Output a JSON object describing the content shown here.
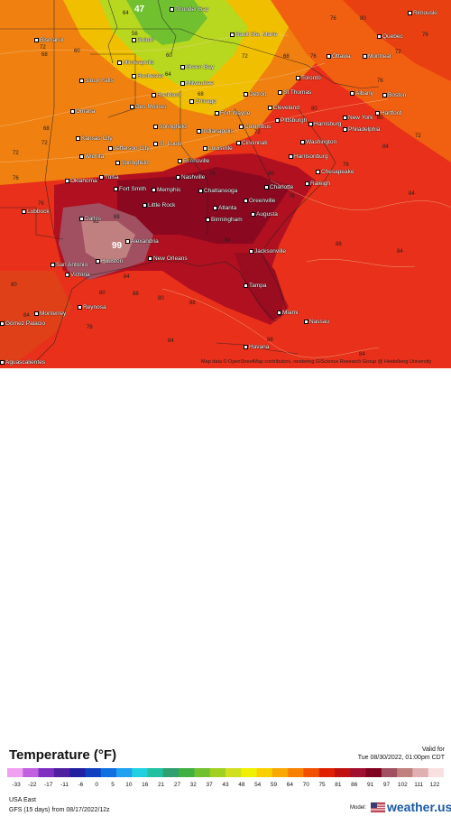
{
  "map": {
    "cities": [
      {
        "name": "Thunder Bay",
        "pos": [
          188,
          8
        ]
      },
      {
        "name": "Sault Ste. Marie",
        "pos": [
          255,
          36
        ]
      },
      {
        "name": "Quebec",
        "pos": [
          418,
          38
        ]
      },
      {
        "name": "Bismarck",
        "pos": [
          38,
          42
        ]
      },
      {
        "name": "Duluth",
        "pos": [
          146,
          42
        ]
      },
      {
        "name": "Rimouski",
        "pos": [
          452,
          12
        ]
      },
      {
        "name": "Ottawa",
        "pos": [
          362,
          60
        ]
      },
      {
        "name": "Montreal",
        "pos": [
          402,
          60
        ]
      },
      {
        "name": "Minneapolis",
        "pos": [
          130,
          67
        ]
      },
      {
        "name": "Green Bay",
        "pos": [
          200,
          72
        ]
      },
      {
        "name": "Toronto",
        "pos": [
          328,
          84
        ]
      },
      {
        "name": "Sioux Falls",
        "pos": [
          88,
          87
        ]
      },
      {
        "name": "Rochester",
        "pos": [
          146,
          82
        ]
      },
      {
        "name": "Milwaukee",
        "pos": [
          200,
          90
        ]
      },
      {
        "name": "Albany",
        "pos": [
          388,
          101
        ]
      },
      {
        "name": "Boston",
        "pos": [
          424,
          103
        ]
      },
      {
        "name": "Rockford",
        "pos": [
          168,
          103
        ]
      },
      {
        "name": "Chicago",
        "pos": [
          210,
          110
        ]
      },
      {
        "name": "Detroit",
        "pos": [
          270,
          102
        ]
      },
      {
        "name": "St Thomas",
        "pos": [
          308,
          100
        ]
      },
      {
        "name": "Des Moines",
        "pos": [
          144,
          116
        ]
      },
      {
        "name": "Omaha",
        "pos": [
          78,
          121
        ]
      },
      {
        "name": "Cleveland",
        "pos": [
          297,
          117
        ]
      },
      {
        "name": "Hartford",
        "pos": [
          416,
          123
        ]
      },
      {
        "name": "Fort Wayne",
        "pos": [
          238,
          123
        ]
      },
      {
        "name": "New York",
        "pos": [
          380,
          128
        ]
      },
      {
        "name": "Pittsburgh",
        "pos": [
          305,
          131
        ]
      },
      {
        "name": "Harrisburg",
        "pos": [
          342,
          135
        ]
      },
      {
        "name": "Philadelphia",
        "pos": [
          380,
          141
        ]
      },
      {
        "name": "Springfield",
        "pos": [
          170,
          138
        ]
      },
      {
        "name": "Indianapolis",
        "pos": [
          218,
          143
        ]
      },
      {
        "name": "Columbus",
        "pos": [
          265,
          138
        ]
      },
      {
        "name": "Kansas City",
        "pos": [
          84,
          151
        ]
      },
      {
        "name": "St. Louis",
        "pos": [
          170,
          157
        ]
      },
      {
        "name": "Cincinnati",
        "pos": [
          262,
          156
        ]
      },
      {
        "name": "Washington",
        "pos": [
          333,
          155
        ]
      },
      {
        "name": "Jefferson City",
        "pos": [
          120,
          162
        ]
      },
      {
        "name": "Louisville",
        "pos": [
          225,
          162
        ]
      },
      {
        "name": "Harrisonburg",
        "pos": [
          320,
          171
        ]
      },
      {
        "name": "Wichita",
        "pos": [
          88,
          171
        ]
      },
      {
        "name": "Springfield",
        "pos": [
          128,
          178
        ]
      },
      {
        "name": "Evansville",
        "pos": [
          197,
          176
        ]
      },
      {
        "name": "Chesapeake",
        "pos": [
          350,
          188
        ]
      },
      {
        "name": "Nashville",
        "pos": [
          195,
          194
        ]
      },
      {
        "name": "Tulsa",
        "pos": [
          110,
          194
        ]
      },
      {
        "name": "Oklahoma",
        "pos": [
          72,
          198
        ]
      },
      {
        "name": "Charlotte",
        "pos": [
          293,
          205
        ]
      },
      {
        "name": "Raleigh",
        "pos": [
          338,
          201
        ]
      },
      {
        "name": "Fort Smith",
        "pos": [
          126,
          207
        ]
      },
      {
        "name": "Memphis",
        "pos": [
          168,
          208
        ]
      },
      {
        "name": "Chattanooga",
        "pos": [
          220,
          209
        ]
      },
      {
        "name": "Greenville",
        "pos": [
          270,
          220
        ]
      },
      {
        "name": "Little Rock",
        "pos": [
          158,
          225
        ]
      },
      {
        "name": "Lubbock",
        "pos": [
          24,
          232
        ]
      },
      {
        "name": "Atlanta",
        "pos": [
          236,
          228
        ]
      },
      {
        "name": "Augusta",
        "pos": [
          278,
          235
        ]
      },
      {
        "name": "Dallas",
        "pos": [
          88,
          240
        ]
      },
      {
        "name": "Birmingham",
        "pos": [
          228,
          241
        ]
      },
      {
        "name": "Alexandria",
        "pos": [
          139,
          265
        ]
      },
      {
        "name": "Jacksonville",
        "pos": [
          276,
          276
        ]
      },
      {
        "name": "New Orleans",
        "pos": [
          164,
          284
        ]
      },
      {
        "name": "San Antonio",
        "pos": [
          56,
          291
        ]
      },
      {
        "name": "Houston",
        "pos": [
          106,
          287
        ]
      },
      {
        "name": "Victoria",
        "pos": [
          72,
          302
        ]
      },
      {
        "name": "Tampa",
        "pos": [
          270,
          314
        ]
      },
      {
        "name": "Reynosa",
        "pos": [
          86,
          338
        ]
      },
      {
        "name": "Monterrey",
        "pos": [
          38,
          345
        ]
      },
      {
        "name": "Miami",
        "pos": [
          307,
          344
        ]
      },
      {
        "name": "Nassau",
        "pos": [
          337,
          354
        ]
      },
      {
        "name": "Gómez Palacio",
        "pos": [
          0,
          356
        ]
      },
      {
        "name": "Havana",
        "pos": [
          270,
          382
        ]
      },
      {
        "name": "Aguascalientes",
        "pos": [
          0,
          399
        ]
      }
    ],
    "contour_values": [
      {
        "t": "47",
        "pos": [
          149,
          6
        ],
        "big": true
      },
      {
        "t": "56",
        "pos": [
          146,
          35
        ]
      },
      {
        "t": "60",
        "pos": [
          82,
          54
        ]
      },
      {
        "t": "60",
        "pos": [
          184,
          59
        ]
      },
      {
        "t": "64",
        "pos": [
          183,
          80
        ]
      },
      {
        "t": "68",
        "pos": [
          46,
          58
        ]
      },
      {
        "t": "72",
        "pos": [
          44,
          50
        ]
      },
      {
        "t": "68",
        "pos": [
          48,
          140
        ]
      },
      {
        "t": "72",
        "pos": [
          46,
          156
        ]
      },
      {
        "t": "72",
        "pos": [
          14,
          167
        ]
      },
      {
        "t": "76",
        "pos": [
          14,
          195
        ]
      },
      {
        "t": "76",
        "pos": [
          42,
          223
        ]
      },
      {
        "t": "72",
        "pos": [
          282,
          144
        ]
      },
      {
        "t": "68",
        "pos": [
          219,
          102
        ]
      },
      {
        "t": "72",
        "pos": [
          268,
          60
        ]
      },
      {
        "t": "68",
        "pos": [
          314,
          60
        ]
      },
      {
        "t": "76",
        "pos": [
          344,
          60
        ]
      },
      {
        "t": "76",
        "pos": [
          366,
          18
        ]
      },
      {
        "t": "80",
        "pos": [
          399,
          18
        ]
      },
      {
        "t": "76",
        "pos": [
          468,
          36
        ]
      },
      {
        "t": "72",
        "pos": [
          438,
          55
        ]
      },
      {
        "t": "76",
        "pos": [
          418,
          87
        ]
      },
      {
        "t": "80",
        "pos": [
          418,
          128
        ]
      },
      {
        "t": "84",
        "pos": [
          424,
          160
        ]
      },
      {
        "t": "84",
        "pos": [
          453,
          212
        ]
      },
      {
        "t": "84",
        "pos": [
          440,
          276
        ]
      },
      {
        "t": "88",
        "pos": [
          372,
          268
        ]
      },
      {
        "t": "84",
        "pos": [
          398,
          390
        ]
      },
      {
        "t": "88",
        "pos": [
          296,
          374
        ]
      },
      {
        "t": "84",
        "pos": [
          249,
          264
        ]
      },
      {
        "t": "88",
        "pos": [
          126,
          238
        ]
      },
      {
        "t": "92",
        "pos": [
          103,
          243
        ]
      },
      {
        "t": "84",
        "pos": [
          137,
          304
        ]
      },
      {
        "t": "88",
        "pos": [
          147,
          323
        ]
      },
      {
        "t": "80",
        "pos": [
          175,
          328
        ]
      },
      {
        "t": "88",
        "pos": [
          210,
          333
        ]
      },
      {
        "t": "84",
        "pos": [
          186,
          375
        ]
      },
      {
        "t": "80",
        "pos": [
          110,
          322
        ]
      },
      {
        "t": "76",
        "pos": [
          96,
          360
        ]
      },
      {
        "t": "84",
        "pos": [
          26,
          347
        ]
      },
      {
        "t": "80",
        "pos": [
          12,
          313
        ]
      },
      {
        "t": "76",
        "pos": [
          232,
          190
        ]
      },
      {
        "t": "80",
        "pos": [
          297,
          190
        ]
      },
      {
        "t": "76",
        "pos": [
          320,
          215
        ]
      },
      {
        "t": "80",
        "pos": [
          345,
          118
        ]
      },
      {
        "t": "76",
        "pos": [
          380,
          180
        ]
      },
      {
        "t": "72",
        "pos": [
          208,
          176
        ]
      },
      {
        "t": "64",
        "pos": [
          136,
          12
        ]
      },
      {
        "t": "72",
        "pos": [
          460,
          148
        ]
      }
    ],
    "max_value": {
      "t": "99",
      "pos": [
        124,
        268
      ]
    },
    "attribution": "Map data © OpenStreetMap contributors, rendering GIScience Research Group @ Heidelberg University"
  },
  "legend": {
    "title": "Temperature (°F)",
    "valid_label": "Valid for",
    "valid_time": "Tue 08/30/2022, 01:00pm CDT",
    "ticks": [
      "-33",
      "-22",
      "-17",
      "-11",
      "-6",
      "0",
      "5",
      "10",
      "16",
      "21",
      "27",
      "32",
      "37",
      "43",
      "48",
      "54",
      "59",
      "64",
      "70",
      "75",
      "81",
      "86",
      "91",
      "97",
      "102",
      "111",
      "122"
    ],
    "colors": [
      "#f0a0f0",
      "#c060e0",
      "#8030c0",
      "#5020a0",
      "#2020a0",
      "#1040c0",
      "#1070e0",
      "#20a0f0",
      "#20d0e0",
      "#20c0a0",
      "#30a070",
      "#40b040",
      "#70c030",
      "#a0d020",
      "#d0e020",
      "#f0f000",
      "#f8d000",
      "#f8a800",
      "#f88000",
      "#f05000",
      "#e02000",
      "#c01010",
      "#a01030",
      "#800020",
      "#a05060",
      "#c08080",
      "#e0b0b0",
      "#f8e0e0"
    ],
    "region": "USA East",
    "model_run": "GFS (15 days) from 08/17/2022/12z",
    "brand_label": "Model:",
    "brand_name": "weather.us"
  }
}
